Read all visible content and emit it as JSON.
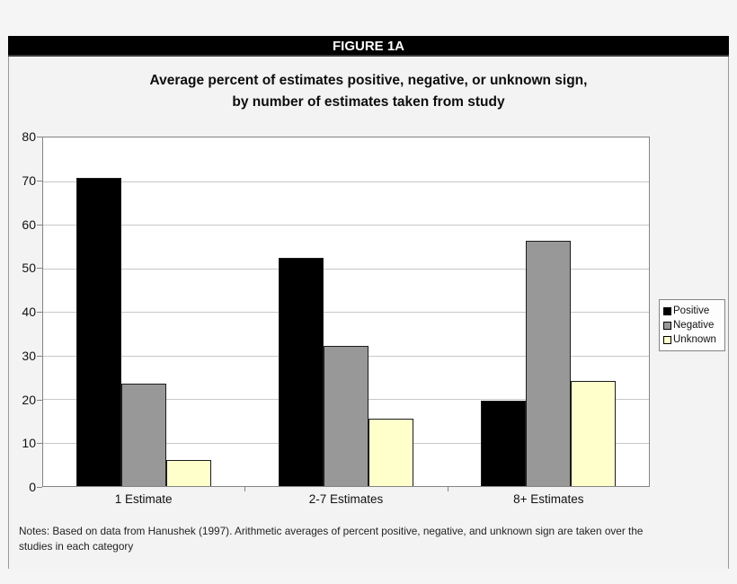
{
  "figure": {
    "label": "FIGURE 1A"
  },
  "title": {
    "line1": "Average percent of estimates positive, negative, or unknown sign,",
    "line2": "by number of estimates taken from study"
  },
  "chart_data": {
    "type": "bar",
    "title": "Average percent of estimates positive, negative, or unknown sign, by number of estimates taken from study",
    "categories": [
      "1 Estimate",
      "2-7 Estimates",
      "8+ Estimates"
    ],
    "series": [
      {
        "name": "Positive",
        "color": "#000000",
        "values": [
          70.7,
          52.4,
          19.5
        ]
      },
      {
        "name": "Negative",
        "color": "#989898",
        "values": [
          23.5,
          32.1,
          56.3
        ]
      },
      {
        "name": "Unknown",
        "color": "#ffffcc",
        "values": [
          5.9,
          15.4,
          24.2
        ]
      }
    ],
    "xlabel": "",
    "ylabel": "",
    "ylim": [
      0,
      80
    ],
    "yticks": [
      0,
      10,
      20,
      30,
      40,
      50,
      60,
      70,
      80
    ],
    "grid": true,
    "legend_position": "right"
  },
  "notes": {
    "line1": "Notes: Based on data from Hanushek (1997). Arithmetic averages of percent positive, negative, and unknown sign are taken over the",
    "line2": "studies in each category"
  },
  "colors": {
    "header_bg": "#000000",
    "header_text": "#ffffff",
    "page_bg": "#f5f5f5",
    "plot_bg": "#ffffff",
    "plot_border": "#848484",
    "gridline": "#c8c8c8"
  }
}
